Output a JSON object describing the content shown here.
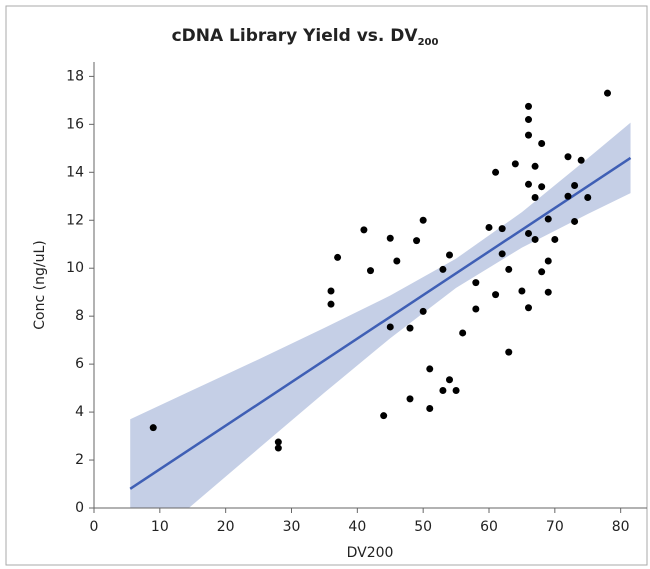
{
  "chart_data": {
    "type": "scatter",
    "title": "cDNA Library Yield vs. DV",
    "title_subscript": "200",
    "x_label": "DV200",
    "y_label": "Conc (ng/uL)",
    "xlim": [
      0,
      84
    ],
    "ylim": [
      0,
      18.6
    ],
    "xticks": [
      0,
      10,
      20,
      30,
      40,
      50,
      60,
      70,
      80
    ],
    "yticks": [
      0,
      2,
      4,
      6,
      8,
      10,
      12,
      14,
      16,
      18
    ],
    "point_color": "#000000",
    "fit_color": "#3f5fb5",
    "band_color": "#c5cfe6",
    "x": [
      9,
      28,
      28,
      36,
      36,
      37,
      41,
      42,
      44,
      45,
      45,
      46,
      48,
      48,
      49,
      50,
      50,
      51,
      51,
      53,
      53,
      54,
      54,
      55,
      56,
      58,
      58,
      60,
      61,
      61,
      62,
      62,
      63,
      63,
      64,
      65,
      66,
      66,
      66,
      66,
      66,
      66,
      67,
      67,
      67,
      68,
      68,
      68,
      69,
      69,
      69,
      70,
      72,
      72,
      73,
      73,
      74,
      75,
      78
    ],
    "y": [
      3.35,
      2.75,
      2.5,
      9.05,
      8.5,
      10.45,
      11.6,
      9.9,
      3.85,
      11.25,
      7.55,
      10.3,
      7.5,
      4.55,
      11.15,
      12,
      8.2,
      5.8,
      4.15,
      9.95,
      4.9,
      10.55,
      5.35,
      4.9,
      7.3,
      9.4,
      8.3,
      11.7,
      14,
      8.9,
      11.65,
      10.6,
      9.95,
      6.5,
      14.35,
      9.05,
      16.75,
      16.2,
      15.55,
      13.5,
      11.45,
      8.35,
      14.25,
      12.95,
      11.2,
      15.2,
      13.4,
      9.85,
      12.05,
      10.3,
      9,
      11.2,
      14.65,
      13,
      13.45,
      11.95,
      14.5,
      12.95,
      17.3
    ],
    "fit": {
      "x": [
        5.5,
        81.5
      ],
      "y": [
        0.8,
        14.6
      ]
    },
    "band": {
      "x": [
        5.5,
        15,
        25,
        35,
        45,
        55,
        65,
        75,
        81.5
      ],
      "lower": [
        -2.1,
        0.14,
        2.48,
        4.81,
        7.08,
        9.18,
        10.86,
        12.26,
        13.13
      ],
      "upper": [
        3.7,
        4.92,
        6.2,
        7.51,
        8.86,
        10.4,
        12.34,
        14.58,
        16.07
      ]
    }
  }
}
